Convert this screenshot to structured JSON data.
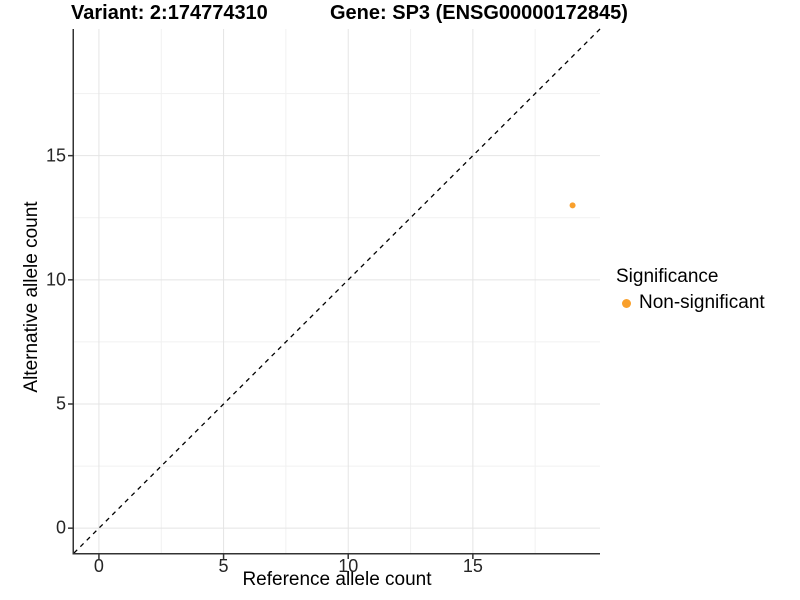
{
  "figure": {
    "background": "#FFFFFF"
  },
  "chart_data": {
    "type": "scatter",
    "titles": {
      "left": "Variant: 2:174774310",
      "right": "Gene: SP3 (ENSG00000172845)"
    },
    "xlabel": "Reference allele count",
    "ylabel": "Alternative allele count",
    "xlim": [
      -1,
      20.1
    ],
    "ylim": [
      -1,
      20.1
    ],
    "x_ticks": [
      0,
      5,
      10,
      15
    ],
    "y_ticks": [
      0,
      5,
      10,
      15
    ],
    "x_minor_ticks": [
      2.5,
      7.5,
      12.5,
      17.5
    ],
    "y_minor_ticks": [
      2.5,
      7.5,
      12.5,
      17.5
    ],
    "grid": "major+minor",
    "points": [
      {
        "x": 19,
        "y": 13,
        "series": "Non-significant"
      }
    ],
    "reference_line": {
      "type": "identity",
      "style": "dashed",
      "from": [
        -1,
        -1
      ],
      "to": [
        20.1,
        20.1
      ],
      "color": "#000000"
    },
    "legend": {
      "title": "Significance",
      "position": "right",
      "entries": [
        {
          "label": "Non-significant",
          "color": "#F9A02C"
        }
      ]
    },
    "colors": {
      "point": "#F9A02C",
      "grid_major": "#E4E4E4",
      "grid_minor": "#F1F1F1",
      "axis": "#333333",
      "text": "#000000"
    }
  }
}
